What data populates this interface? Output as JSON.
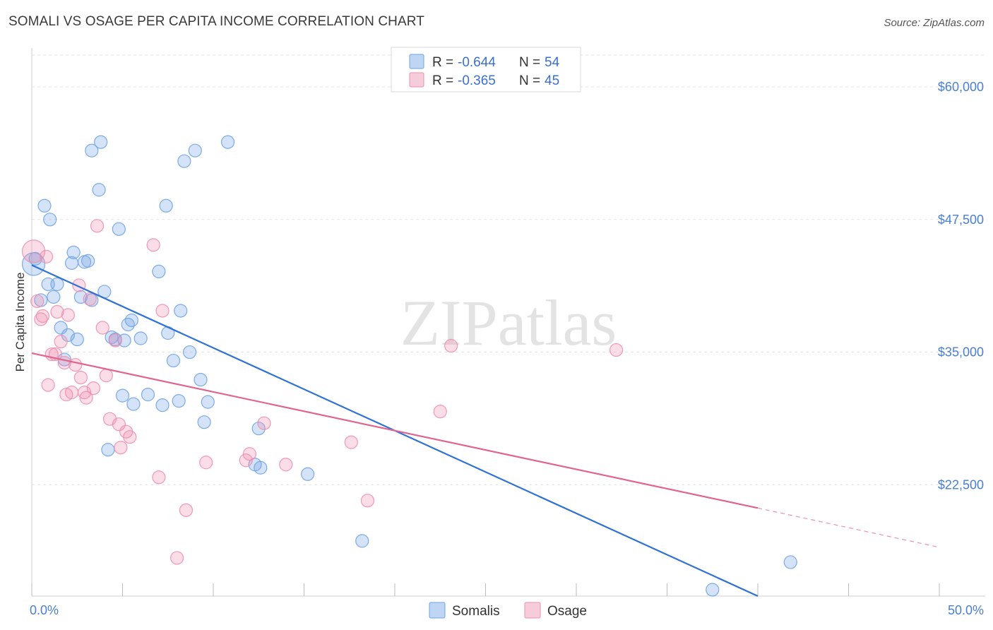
{
  "title": "SOMALI VS OSAGE PER CAPITA INCOME CORRELATION CHART",
  "source": "Source: ZipAtlas.com",
  "chart_data": {
    "type": "scatter",
    "ylabel": "Per Capita Income",
    "xlabel": "",
    "xlim": [
      0,
      50
    ],
    "ylim": [
      12000,
      63000
    ],
    "y_ticks": [
      22500,
      35000,
      47500,
      60000
    ],
    "y_tick_labels": [
      "$22,500",
      "$35,000",
      "$47,500",
      "$60,000"
    ],
    "x_tick_labels": [
      "0.0%",
      "50.0%"
    ],
    "grid": true,
    "watermark": "ZIPatlas",
    "colors": {
      "somalis": "#6fa3e6",
      "osage": "#ee8fae",
      "somalis_line": "#2f72d6",
      "osage_line": "#e0648f"
    },
    "legend": [
      {
        "name": "Somalis",
        "r_label": "R =",
        "r": "-0.644",
        "n_label": "N =",
        "n": "54"
      },
      {
        "name": "Osage",
        "r_label": "R =",
        "r": "-0.365",
        "n_label": "N =",
        "n": "45"
      }
    ],
    "series": [
      {
        "name": "Somalis",
        "points": [
          [
            0.1,
            43.3
          ],
          [
            0.2,
            43.8
          ],
          [
            0.5,
            39.9
          ],
          [
            0.7,
            48.8
          ],
          [
            0.9,
            41.4
          ],
          [
            1.0,
            47.5
          ],
          [
            1.2,
            40.2
          ],
          [
            1.4,
            41.4
          ],
          [
            1.6,
            37.3
          ],
          [
            1.8,
            34.3
          ],
          [
            2.0,
            36.6
          ],
          [
            2.2,
            43.4
          ],
          [
            2.3,
            44.4
          ],
          [
            2.5,
            36.2
          ],
          [
            2.7,
            40.2
          ],
          [
            2.9,
            43.5
          ],
          [
            3.1,
            43.6
          ],
          [
            3.3,
            39.9
          ],
          [
            3.3,
            54.0
          ],
          [
            3.7,
            50.3
          ],
          [
            3.8,
            54.8
          ],
          [
            4.0,
            40.7
          ],
          [
            4.2,
            25.8
          ],
          [
            4.4,
            36.4
          ],
          [
            4.6,
            36.2
          ],
          [
            4.8,
            46.6
          ],
          [
            5.0,
            30.9
          ],
          [
            5.1,
            36.1
          ],
          [
            5.3,
            37.6
          ],
          [
            5.5,
            38.0
          ],
          [
            5.6,
            30.1
          ],
          [
            6.0,
            36.3
          ],
          [
            6.4,
            31.0
          ],
          [
            7.0,
            42.6
          ],
          [
            7.2,
            30.0
          ],
          [
            7.4,
            48.8
          ],
          [
            7.5,
            36.8
          ],
          [
            7.8,
            34.2
          ],
          [
            8.1,
            30.4
          ],
          [
            8.2,
            38.9
          ],
          [
            8.4,
            53.0
          ],
          [
            8.7,
            35.0
          ],
          [
            9.0,
            54.0
          ],
          [
            9.3,
            32.4
          ],
          [
            9.5,
            28.4
          ],
          [
            9.7,
            30.3
          ],
          [
            10.8,
            54.8
          ],
          [
            12.3,
            24.4
          ],
          [
            12.5,
            27.8
          ],
          [
            12.6,
            24.1
          ],
          [
            15.2,
            23.5
          ],
          [
            18.2,
            17.2
          ],
          [
            37.5,
            12.6
          ],
          [
            41.8,
            15.2
          ]
        ],
        "trend": {
          "x0": 0,
          "y0": 43.2,
          "x1": 40,
          "y1": 12.0
        }
      },
      {
        "name": "Osage",
        "points": [
          [
            0.1,
            44.5
          ],
          [
            0.3,
            39.8
          ],
          [
            0.5,
            38.1
          ],
          [
            0.6,
            38.4
          ],
          [
            0.8,
            44.0
          ],
          [
            0.9,
            31.9
          ],
          [
            1.1,
            34.8
          ],
          [
            1.3,
            34.8
          ],
          [
            1.4,
            38.8
          ],
          [
            1.6,
            36.0
          ],
          [
            1.8,
            34.0
          ],
          [
            1.9,
            31.0
          ],
          [
            2.0,
            38.5
          ],
          [
            2.2,
            31.2
          ],
          [
            2.4,
            33.8
          ],
          [
            2.6,
            41.3
          ],
          [
            2.7,
            32.6
          ],
          [
            2.9,
            31.2
          ],
          [
            3.0,
            30.7
          ],
          [
            3.2,
            40.0
          ],
          [
            3.4,
            31.6
          ],
          [
            3.6,
            46.9
          ],
          [
            3.9,
            37.3
          ],
          [
            4.1,
            32.8
          ],
          [
            4.3,
            28.7
          ],
          [
            4.6,
            36.1
          ],
          [
            4.8,
            28.2
          ],
          [
            4.9,
            26.0
          ],
          [
            5.2,
            27.5
          ],
          [
            5.4,
            27.0
          ],
          [
            6.7,
            45.1
          ],
          [
            7.0,
            23.2
          ],
          [
            7.2,
            38.9
          ],
          [
            8.5,
            20.1
          ],
          [
            8.0,
            15.6
          ],
          [
            9.6,
            24.6
          ],
          [
            11.8,
            24.8
          ],
          [
            12.0,
            25.4
          ],
          [
            12.8,
            28.3
          ],
          [
            14.0,
            24.4
          ],
          [
            17.6,
            26.5
          ],
          [
            18.5,
            21.0
          ],
          [
            22.5,
            29.4
          ],
          [
            23.1,
            35.6
          ],
          [
            32.2,
            35.2
          ]
        ],
        "trend": {
          "x0": 0,
          "y0": 34.9,
          "x1": 40,
          "y1": 20.3
        },
        "trend_dashed": {
          "x0": 40,
          "y0": 20.3,
          "x1": 50,
          "y1": 16.6
        }
      }
    ]
  }
}
